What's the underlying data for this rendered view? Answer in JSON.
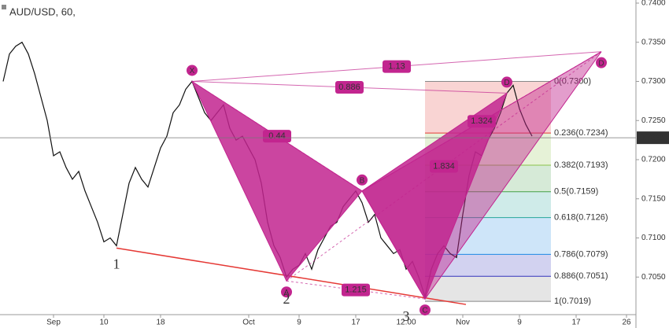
{
  "chart_data": {
    "type": "line",
    "title": "AUD/USD, 60,",
    "categories": [
      null,
      null,
      null,
      null,
      null,
      null,
      null,
      null,
      "Sep",
      null,
      null,
      null,
      null,
      null,
      null,
      null,
      "10",
      null,
      null,
      null,
      null,
      null,
      null,
      null,
      null,
      "18",
      null,
      null,
      null,
      null,
      null,
      null,
      null,
      null,
      null,
      null,
      null,
      null,
      null,
      "Oct",
      null,
      null,
      null,
      null,
      null,
      null,
      null,
      "9",
      null,
      null,
      null,
      null,
      null,
      null,
      null,
      null,
      "17",
      null,
      null,
      null,
      null,
      null,
      null,
      null,
      "12:00",
      null,
      null,
      null,
      null,
      null,
      null,
      null,
      null,
      "Nov",
      null,
      null,
      null,
      null,
      null,
      null,
      null,
      null,
      "9",
      null,
      null,
      null,
      null,
      null,
      null,
      null,
      null,
      "17",
      null,
      null,
      null,
      null,
      null,
      null,
      null,
      "26",
      null
    ],
    "values": [
      0.73,
      0.7335,
      0.7345,
      0.735,
      0.7335,
      0.731,
      0.728,
      0.725,
      0.7205,
      0.721,
      0.719,
      0.7175,
      0.7185,
      0.716,
      0.714,
      0.712,
      0.7095,
      0.71,
      0.709,
      0.713,
      0.717,
      0.719,
      0.7175,
      0.7165,
      0.719,
      0.7215,
      0.723,
      0.726,
      0.727,
      0.729,
      0.73,
      0.728,
      0.726,
      0.725,
      0.726,
      0.727,
      0.724,
      0.7225,
      0.723,
      0.7215,
      0.72,
      0.717,
      0.712,
      0.709,
      0.7075,
      0.705,
      0.706,
      0.7065,
      0.708,
      0.706,
      0.7085,
      0.71,
      0.7115,
      0.712,
      0.714,
      0.715,
      0.716,
      0.7145,
      0.712,
      0.713,
      0.71,
      0.709,
      0.708,
      0.7085,
      0.706,
      0.707,
      0.705,
      0.7025,
      0.706,
      0.708,
      0.709,
      0.708,
      0.7075,
      0.713,
      0.718,
      0.721,
      0.7205,
      0.7225,
      0.724,
      0.726,
      0.7285,
      0.7295,
      0.7265,
      0.7245,
      0.723,
      null,
      null,
      null,
      null,
      null,
      null,
      null,
      null,
      null,
      null,
      null,
      null,
      null,
      null,
      null,
      null
    ],
    "color": "#111111",
    "ylim": [
      0.7002,
      0.7404
    ],
    "yticks": [
      {
        "value": 0.705,
        "label": "0.7050"
      },
      {
        "value": 0.71,
        "label": "0.7100"
      },
      {
        "value": 0.715,
        "label": "0.7150"
      },
      {
        "value": 0.72,
        "label": "0.7200"
      },
      {
        "value": 0.725,
        "label": "0.7250"
      },
      {
        "value": 0.73,
        "label": "0.7300"
      },
      {
        "value": 0.735,
        "label": "0.7350"
      },
      {
        "value": 0.74,
        "label": "0.7400"
      }
    ],
    "last_price": {
      "value": 0.7228,
      "label": "0.7228"
    },
    "pattern": {
      "color": "#c2258f",
      "points": [
        {
          "label": "X",
          "index": 30,
          "value": 0.73
        },
        {
          "label": "A",
          "index": 45,
          "value": 0.7045
        },
        {
          "label": "B",
          "index": 57,
          "value": 0.716
        },
        {
          "label": "C",
          "index": 67,
          "value": 0.7022
        },
        {
          "label": "D",
          "index": 80,
          "value": 0.7285
        },
        {
          "label": "D",
          "index": 95,
          "value": 0.7338
        }
      ],
      "ratios": [
        {
          "label": "1.13",
          "from": 0,
          "to": 5
        },
        {
          "label": "0.886",
          "from": 0,
          "to": 4
        },
        {
          "label": "0.44",
          "from": 0,
          "to": 2
        },
        {
          "label": "1.324",
          "from": 2,
          "to": 5
        },
        {
          "label": "1.834",
          "from": 1,
          "to": 5
        },
        {
          "label": "1.215",
          "from": 1,
          "to": 3
        }
      ]
    },
    "fib": {
      "from": 67,
      "to": 87,
      "levels": [
        {
          "label": "0(0.7300)",
          "value": 0.73,
          "color": "#888888"
        },
        {
          "label": "0.236(0.7234)",
          "value": 0.7234,
          "color": "#e53935"
        },
        {
          "label": "0.382(0.7193)",
          "value": 0.7193,
          "color": "#8bc34a"
        },
        {
          "label": "0.5(0.7159)",
          "value": 0.7159,
          "color": "#43a047"
        },
        {
          "label": "0.618(0.7126)",
          "value": 0.7126,
          "color": "#26a69a"
        },
        {
          "label": "0.786(0.7079)",
          "value": 0.7079,
          "color": "#1e88e5"
        },
        {
          "label": "0.886(0.7051)",
          "value": 0.7051,
          "color": "#3333bb"
        },
        {
          "label": "1(0.7019)",
          "value": 0.7019,
          "color": "#888888"
        }
      ]
    },
    "trendline": {
      "color": "#e53935",
      "from": [
        18,
        0.7087
      ],
      "to": [
        73.5,
        0.7015
      ]
    },
    "waves": [
      {
        "label": "1",
        "index": 18,
        "value": 0.7065
      },
      {
        "label": "2",
        "index": 45,
        "value": 0.702
      },
      {
        "label": "3",
        "index": 64,
        "value": 0.6998
      }
    ]
  }
}
